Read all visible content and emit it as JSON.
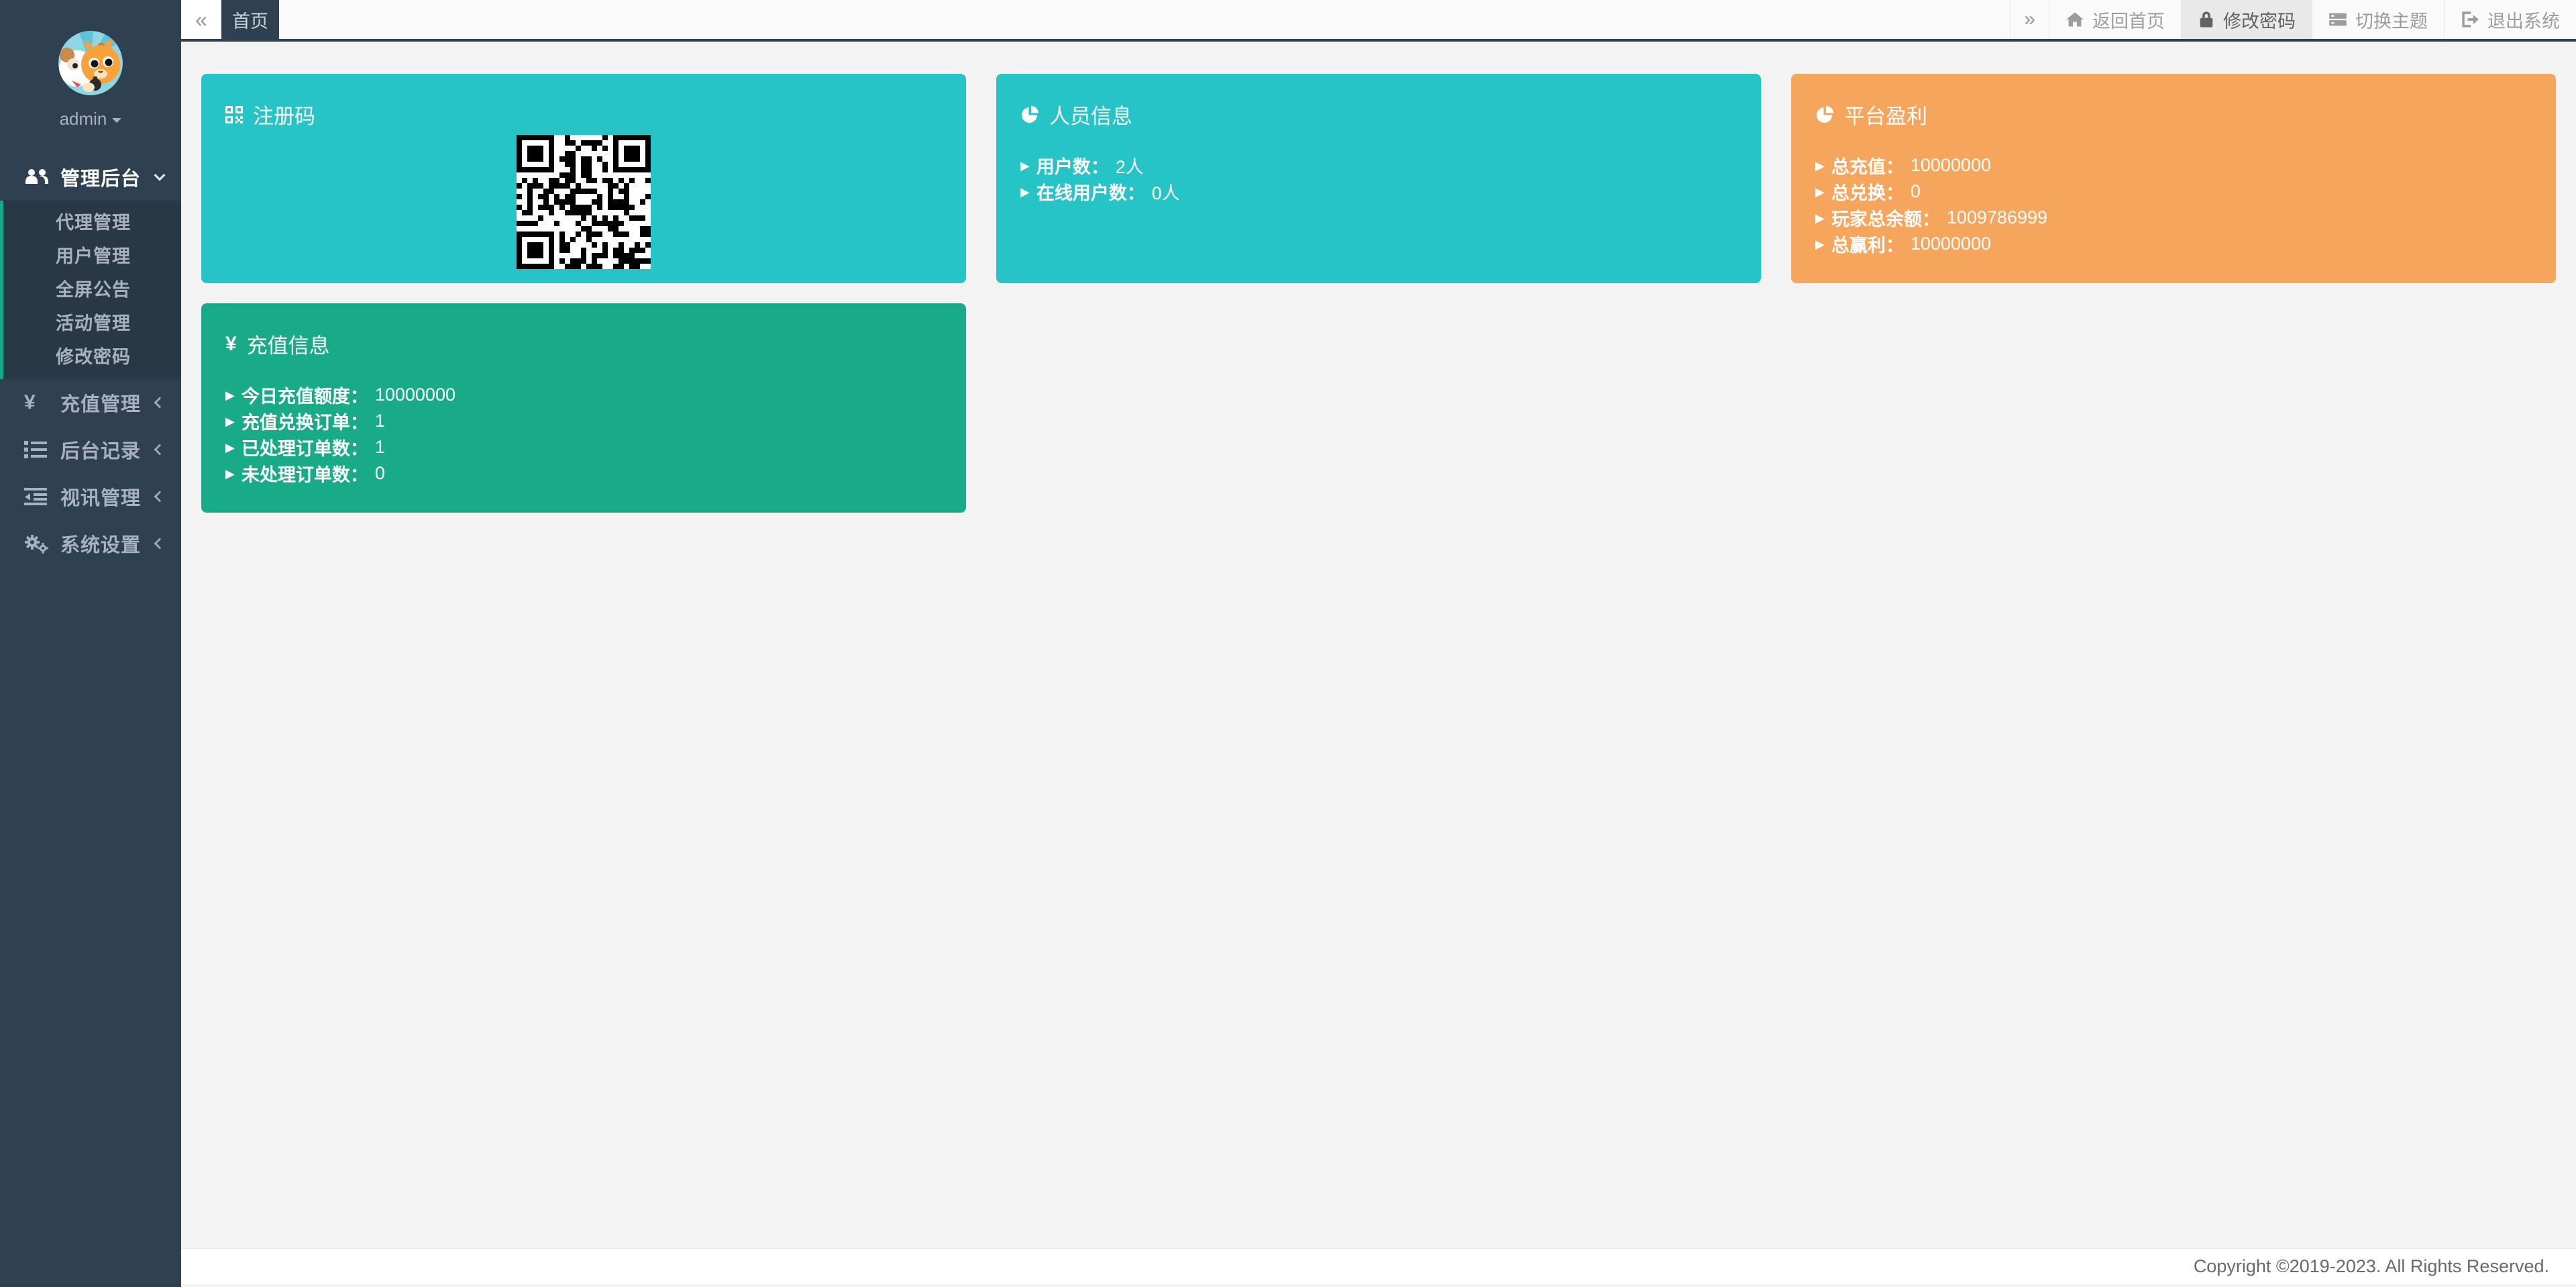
{
  "user": {
    "name": "admin"
  },
  "sidebar": {
    "items": [
      {
        "label": "管理后台",
        "children": [
          "代理管理",
          "用户管理",
          "全屏公告",
          "活动管理",
          "修改密码"
        ]
      },
      {
        "label": "充值管理"
      },
      {
        "label": "后台记录"
      },
      {
        "label": "视讯管理"
      },
      {
        "label": "系统设置"
      }
    ]
  },
  "topbar": {
    "collapse_left": "«",
    "collapse_right": "»",
    "tab_home": "首页",
    "actions": {
      "back_home": "返回首页",
      "change_password": "修改密码",
      "switch_theme": "切换主题",
      "logout": "退出系统"
    }
  },
  "cards": {
    "register_code": {
      "title": "注册码"
    },
    "personnel": {
      "title": "人员信息",
      "items": [
        {
          "label": "用户数：",
          "value": "2人"
        },
        {
          "label": "在线用户数：",
          "value": "0人"
        }
      ]
    },
    "platform_profit": {
      "title": "平台盈利",
      "items": [
        {
          "label": "总充值：",
          "value": "10000000"
        },
        {
          "label": "总兑换：",
          "value": "0"
        },
        {
          "label": "玩家总余额：",
          "value": "1009786999"
        },
        {
          "label": "总赢利：",
          "value": "10000000"
        }
      ]
    },
    "recharge_info": {
      "title": "充值信息",
      "items": [
        {
          "label": "今日充值额度：",
          "value": "10000000"
        },
        {
          "label": "充值兑换订单：",
          "value": "1"
        },
        {
          "label": "已处理订单数：",
          "value": "1"
        },
        {
          "label": "未处理订单数：",
          "value": "0"
        }
      ]
    }
  },
  "colors": {
    "teal": "#26c3c7",
    "orange": "#f5a55c",
    "green": "#19ab87",
    "accent": "#18a689",
    "sidebar": "#2f4050"
  },
  "footer": {
    "copyright": "Copyright ©2019-2023. All Rights Reserved."
  }
}
